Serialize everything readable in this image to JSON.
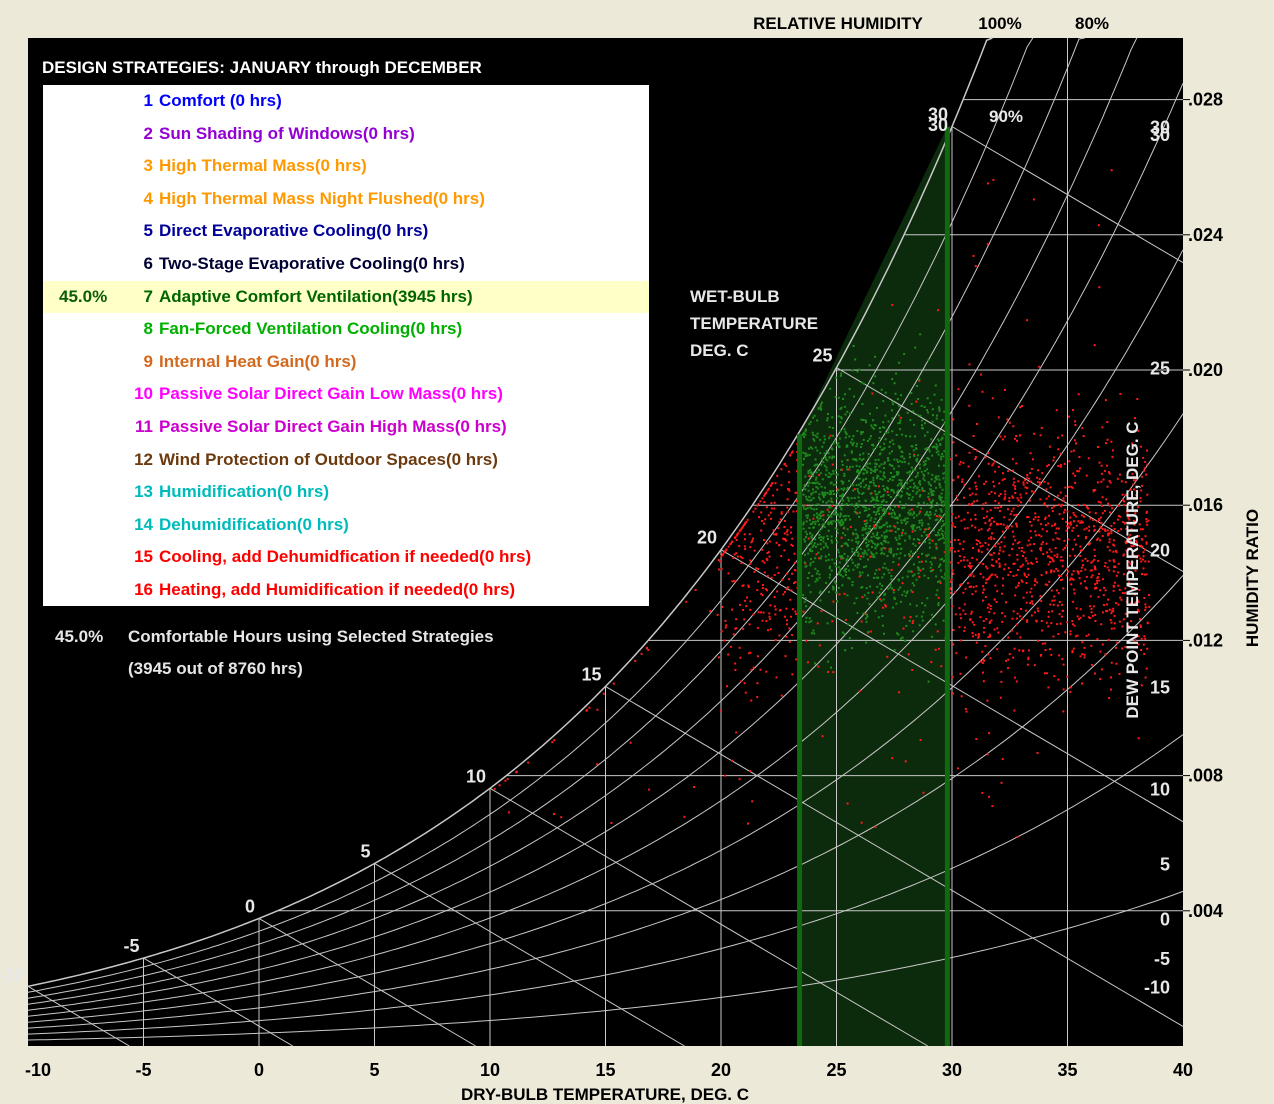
{
  "header": {
    "title": "DESIGN STRATEGIES:  JANUARY through DECEMBER"
  },
  "strategies": [
    {
      "num": "1",
      "label": "Comfort (0 hrs)",
      "color": "#0000ff",
      "pct": ""
    },
    {
      "num": "2",
      "label": "Sun Shading of Windows(0 hrs)",
      "color": "#9400d3",
      "pct": ""
    },
    {
      "num": "3",
      "label": "High Thermal Mass(0 hrs)",
      "color": "#ff9900",
      "pct": ""
    },
    {
      "num": "4",
      "label": "High Thermal Mass Night Flushed(0 hrs)",
      "color": "#ff9900",
      "pct": ""
    },
    {
      "num": "5",
      "label": "Direct Evaporative Cooling(0 hrs)",
      "color": "#000099",
      "pct": ""
    },
    {
      "num": "6",
      "label": "Two-Stage Evaporative Cooling(0 hrs)",
      "color": "#000033",
      "pct": ""
    },
    {
      "num": "7",
      "label": "Adaptive Comfort Ventilation(3945 hrs)",
      "color": "#006400",
      "pct": "45.0%",
      "selected": true
    },
    {
      "num": "8",
      "label": "Fan-Forced Ventilation Cooling(0 hrs)",
      "color": "#00b000",
      "pct": ""
    },
    {
      "num": "9",
      "label": "Internal Heat Gain(0 hrs)",
      "color": "#d2691e",
      "pct": ""
    },
    {
      "num": "10",
      "label": "Passive Solar Direct Gain Low Mass(0 hrs)",
      "color": "#ff00ff",
      "pct": ""
    },
    {
      "num": "11",
      "label": "Passive Solar Direct Gain High Mass(0 hrs)",
      "color": "#cc00cc",
      "pct": ""
    },
    {
      "num": "12",
      "label": "Wind Protection of Outdoor Spaces(0 hrs)",
      "color": "#6b3a0f",
      "pct": ""
    },
    {
      "num": "13",
      "label": "Humidification(0 hrs)",
      "color": "#00bbbb",
      "pct": ""
    },
    {
      "num": "14",
      "label": "Dehumidification(0 hrs)",
      "color": "#00bbbb",
      "pct": ""
    },
    {
      "num": "15",
      "label": "Cooling, add Dehumidfication if needed(0 hrs)",
      "color": "#ff0000",
      "pct": ""
    },
    {
      "num": "16",
      "label": "Heating, add Humidification if needed(0 hrs)",
      "color": "#ff0000",
      "pct": ""
    }
  ],
  "summary": {
    "pct": "45.0%",
    "line1": "Comfortable Hours using Selected Strategies",
    "line2": "(3945 out of 8760 hrs)"
  },
  "colors": {
    "background": "#000000",
    "grid": "#c8c8c8",
    "comfort_zone": "#0d6b0d",
    "dots_in": "#1f8a1f",
    "dots_out": "#ff1a1a"
  },
  "chart_data": {
    "type": "scatter",
    "xlabel": "DRY-BULB TEMPERATURE, DEG. C",
    "ylabel": "HUMIDITY RATIO",
    "xlim": [
      -10,
      40
    ],
    "ylim": [
      0,
      0.0308
    ],
    "x_ticks": [
      "-10",
      "-5",
      "0",
      "5",
      "10",
      "15",
      "20",
      "25",
      "30",
      "35",
      "40"
    ],
    "y_ticks": [
      {
        "value": 0.004,
        "label": ".004"
      },
      {
        "value": 0.008,
        "label": ".008"
      },
      {
        "value": 0.012,
        "label": ".012"
      },
      {
        "value": 0.016,
        "label": ".016"
      },
      {
        "value": 0.02,
        "label": ".020"
      },
      {
        "value": 0.024,
        "label": ".024"
      },
      {
        "value": 0.028,
        "label": ".028"
      }
    ],
    "relative_humidity": {
      "title": "RELATIVE HUMIDITY",
      "curves": [
        10,
        20,
        30,
        40,
        50,
        60,
        70,
        80,
        90,
        100
      ],
      "labels": [
        {
          "rh": 100,
          "text": "100%"
        },
        {
          "rh": 80,
          "text": "80%"
        },
        {
          "rh": 90,
          "text": "90%"
        }
      ]
    },
    "wet_bulb": {
      "title": [
        "WET-BULB",
        "TEMPERATURE",
        "DEG. C"
      ],
      "lines": [
        -10,
        -5,
        0,
        5,
        10,
        15,
        20,
        25,
        30
      ]
    },
    "dew_point": {
      "title": "DEW POINT TEMPERATURE, DEG. C",
      "labels": [
        -10,
        -5,
        0,
        5,
        10,
        15,
        20,
        25,
        30
      ]
    },
    "comfort_zone": {
      "x_min": 23.4,
      "x_max": 29.8,
      "y_max_left": 0.0181,
      "y_max_right": 0.0272
    },
    "clusters": [
      {
        "name": "comfortable",
        "count": 1500,
        "x_range": [
          23.5,
          29.8
        ],
        "y_center": 0.016,
        "y_sd": 0.0017
      },
      {
        "name": "outside",
        "count": 2300,
        "x_range": [
          19.8,
          38.5
        ],
        "y_center": 0.0146,
        "y_sd": 0.0019
      }
    ]
  }
}
